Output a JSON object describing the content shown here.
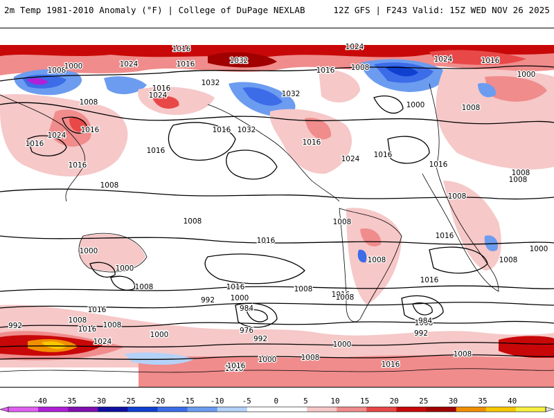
{
  "header": {
    "left_title": "2m Temp 1981-2010 Anomaly (°F) | College of DuPage NEXLAB",
    "right_title": "12Z GFS | F243 Valid: 15Z WED NOV 26 2025"
  },
  "map": {
    "projection": "global cylindrical",
    "field": "2m temperature anomaly (shaded) with MSLP contours (hPa)",
    "pressure_labels": [
      "1016",
      "1024",
      "1032",
      "1024",
      "1016",
      "1008",
      "1000",
      "1016",
      "1032",
      "1024",
      "1008",
      "1016",
      "1000",
      "1024",
      "1016",
      "1032",
      "1000",
      "1008",
      "1016",
      "1008",
      "1016",
      "1024",
      "1016",
      "1016",
      "1016",
      "1032",
      "1016",
      "1024",
      "1016",
      "1016",
      "1008",
      "1008",
      "1000",
      "1000",
      "1008",
      "1008",
      "1016",
      "1008",
      "1016",
      "1016",
      "1008",
      "1008",
      "1008",
      "1008",
      "1016",
      "1016",
      "1000",
      "1016",
      "1008",
      "992",
      "1000",
      "1008",
      "1008",
      "1016",
      "992",
      "1000",
      "1008",
      "1016",
      "1016",
      "1008",
      "1024",
      "1000",
      "992",
      "976",
      "984",
      "992",
      "984",
      "1000",
      "1008",
      "1016",
      "1000",
      "1008",
      "1016"
    ]
  },
  "legend": {
    "ticks": [
      "-40",
      "-35",
      "-30",
      "-25",
      "-20",
      "-15",
      "-10",
      "-5",
      "0",
      "5",
      "10",
      "15",
      "20",
      "25",
      "30",
      "35",
      "40"
    ],
    "colors": [
      "#e060f0",
      "#b020d8",
      "#8010b0",
      "#1010a0",
      "#1040d0",
      "#3c6ce8",
      "#6c9cf0",
      "#b4d2f8",
      "#ffffff",
      "#ffffff",
      "#f6c8c8",
      "#f08c8c",
      "#e84848",
      "#c80808",
      "#a00000",
      "#f09000",
      "#f8c800",
      "#f8f040"
    ]
  }
}
